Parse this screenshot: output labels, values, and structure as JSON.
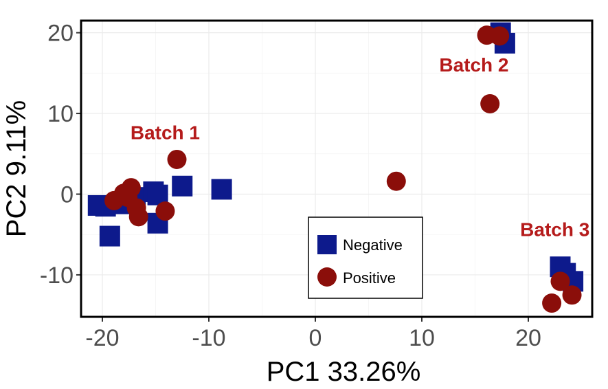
{
  "chart_data": {
    "type": "scatter",
    "xlabel": "PC1 33.26%",
    "ylabel": "PC2 9.11%",
    "xlim": [
      -22,
      26
    ],
    "ylim": [
      -15.2,
      21.5
    ],
    "xticks": [
      -20,
      -10,
      0,
      10,
      20
    ],
    "xtick_labels": [
      "-20",
      "-10",
      "0",
      "10",
      "20"
    ],
    "yticks": [
      -10,
      0,
      10,
      20
    ],
    "ytick_labels": [
      "-10",
      "0",
      "10",
      "20"
    ],
    "grid": true,
    "legend_position": "bottom-center",
    "series": [
      {
        "name": "Negative",
        "marker": "square",
        "color": "#0d1a8c",
        "points": [
          [
            -20.4,
            -1.4
          ],
          [
            -19.7,
            -1.5
          ],
          [
            -19.3,
            -5.2
          ],
          [
            -18.4,
            -1.2
          ],
          [
            -17.2,
            -0.7
          ],
          [
            -16.9,
            -0.4
          ],
          [
            -15.2,
            0.3
          ],
          [
            -14.8,
            -0.1
          ],
          [
            -14.8,
            -3.6
          ],
          [
            -12.5,
            1.0
          ],
          [
            -8.8,
            0.6
          ],
          [
            17.4,
            20.0
          ],
          [
            17.8,
            18.7
          ],
          [
            23.0,
            -9.0
          ],
          [
            23.5,
            -9.8
          ],
          [
            24.2,
            -10.8
          ]
        ]
      },
      {
        "name": "Positive",
        "marker": "circle",
        "color": "#8b0e0a",
        "points": [
          [
            -18.9,
            -0.8
          ],
          [
            -18.0,
            0.1
          ],
          [
            -17.3,
            0.8
          ],
          [
            -17.6,
            -0.4
          ],
          [
            -16.8,
            -1.7
          ],
          [
            -16.6,
            -2.8
          ],
          [
            -14.1,
            -2.1
          ],
          [
            -13.0,
            4.3
          ],
          [
            7.6,
            1.6
          ],
          [
            16.1,
            19.7
          ],
          [
            17.3,
            19.6
          ],
          [
            16.4,
            11.2
          ],
          [
            23.0,
            -10.8
          ],
          [
            24.1,
            -12.5
          ],
          [
            22.2,
            -13.5
          ]
        ]
      }
    ],
    "annotations": [
      {
        "text": "Batch 1",
        "x": -14.1,
        "y": 6.8
      },
      {
        "text": "Batch 2",
        "x": 14.9,
        "y": 15.2
      },
      {
        "text": "Batch 3",
        "x": 22.5,
        "y": -5.2
      }
    ],
    "annotation_color": "#b51b1b",
    "legend_items": [
      "Negative",
      "Positive"
    ]
  }
}
